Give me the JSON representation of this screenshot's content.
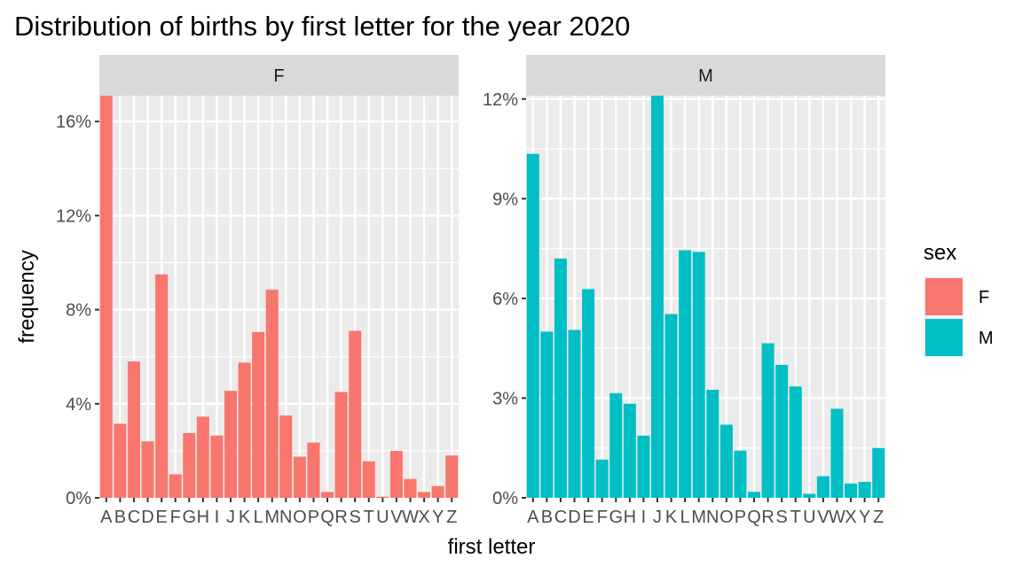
{
  "chart_data": {
    "type": "bar",
    "title": "Distribution of births by first letter for the year 2020",
    "xlabel": "first letter",
    "ylabel": "frequency",
    "categories": [
      "A",
      "B",
      "C",
      "D",
      "E",
      "F",
      "G",
      "H",
      "I",
      "J",
      "K",
      "L",
      "M",
      "N",
      "O",
      "P",
      "Q",
      "R",
      "S",
      "T",
      "U",
      "V",
      "W",
      "X",
      "Y",
      "Z"
    ],
    "legend": {
      "title": "sex",
      "position": "right",
      "entries": [
        {
          "label": "F",
          "color": "#F8766D"
        },
        {
          "label": "M",
          "color": "#00BFC4"
        }
      ]
    },
    "panels": [
      {
        "name": "F",
        "color": "#F8766D",
        "ylim": [
          0,
          17.1
        ],
        "yticks": [
          0,
          4,
          8,
          12,
          16
        ],
        "ytick_labels": [
          "0%",
          "4%",
          "8%",
          "12%",
          "16%"
        ],
        "values": [
          17.1,
          3.15,
          5.8,
          2.4,
          9.5,
          1.0,
          2.75,
          3.45,
          2.65,
          4.55,
          5.75,
          7.05,
          8.85,
          3.5,
          1.75,
          2.35,
          0.25,
          4.5,
          7.1,
          1.55,
          0.05,
          2.0,
          0.8,
          0.25,
          0.5,
          1.8
        ]
      },
      {
        "name": "M",
        "color": "#00BFC4",
        "ylim": [
          0,
          12.1
        ],
        "yticks": [
          0,
          3,
          6,
          9,
          12
        ],
        "ytick_labels": [
          "0%",
          "3%",
          "6%",
          "9%",
          "12%"
        ],
        "values": [
          10.35,
          5.0,
          7.2,
          5.05,
          6.28,
          1.15,
          3.15,
          2.83,
          1.87,
          12.1,
          5.53,
          7.45,
          7.4,
          3.25,
          2.2,
          1.42,
          0.18,
          4.65,
          4.0,
          3.35,
          0.12,
          0.65,
          2.68,
          0.43,
          0.48,
          1.5
        ]
      }
    ],
    "grid": true
  }
}
